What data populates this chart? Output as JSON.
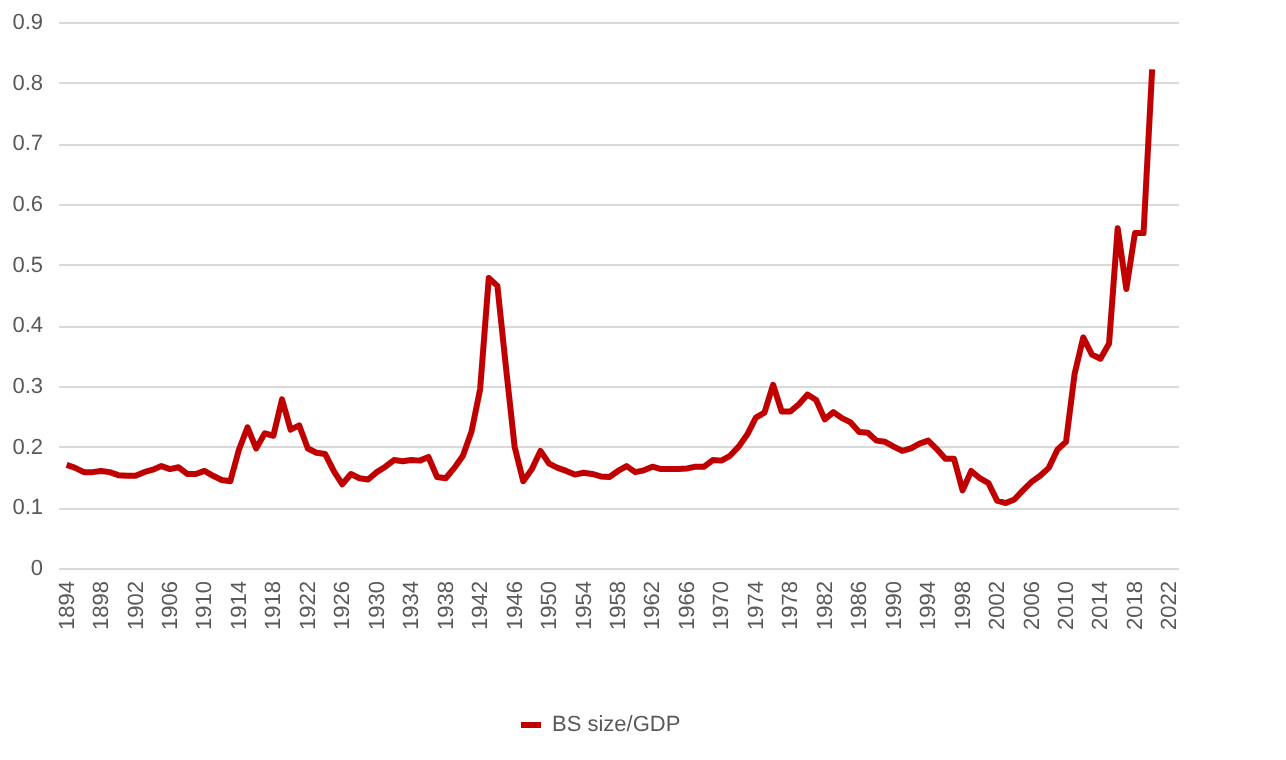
{
  "chart_data": {
    "type": "line",
    "x": [
      1894,
      1895,
      1896,
      1897,
      1898,
      1899,
      1900,
      1901,
      1902,
      1903,
      1904,
      1905,
      1906,
      1907,
      1908,
      1909,
      1910,
      1911,
      1912,
      1913,
      1914,
      1915,
      1916,
      1917,
      1918,
      1919,
      1920,
      1921,
      1922,
      1923,
      1924,
      1925,
      1926,
      1927,
      1928,
      1929,
      1930,
      1931,
      1932,
      1933,
      1934,
      1935,
      1936,
      1937,
      1938,
      1939,
      1940,
      1941,
      1942,
      1943,
      1944,
      1945,
      1946,
      1947,
      1948,
      1949,
      1950,
      1951,
      1952,
      1953,
      1954,
      1955,
      1956,
      1957,
      1958,
      1959,
      1960,
      1961,
      1962,
      1963,
      1964,
      1965,
      1966,
      1967,
      1968,
      1969,
      1970,
      1971,
      1972,
      1973,
      1974,
      1975,
      1976,
      1977,
      1978,
      1979,
      1980,
      1981,
      1982,
      1983,
      1984,
      1985,
      1986,
      1987,
      1988,
      1989,
      1990,
      1991,
      1992,
      1993,
      1994,
      1995,
      1996,
      1997,
      1998,
      1999,
      2000,
      2001,
      2002,
      2003,
      2004,
      2005,
      2006,
      2007,
      2008,
      2009,
      2010,
      2011,
      2012,
      2013,
      2014,
      2015,
      2016,
      2017,
      2018,
      2019,
      2020
    ],
    "series": [
      {
        "name": "BS size/GDP",
        "color": "#c00000",
        "values": [
          0.17,
          0.165,
          0.158,
          0.158,
          0.16,
          0.158,
          0.153,
          0.152,
          0.152,
          0.158,
          0.162,
          0.168,
          0.163,
          0.166,
          0.155,
          0.155,
          0.16,
          0.152,
          0.145,
          0.143,
          0.195,
          0.232,
          0.197,
          0.222,
          0.218,
          0.278,
          0.228,
          0.235,
          0.197,
          0.19,
          0.188,
          0.16,
          0.138,
          0.155,
          0.148,
          0.146,
          0.158,
          0.167,
          0.178,
          0.176,
          0.178,
          0.177,
          0.183,
          0.15,
          0.148,
          0.165,
          0.185,
          0.225,
          0.295,
          0.478,
          0.465,
          0.33,
          0.2,
          0.143,
          0.163,
          0.193,
          0.172,
          0.165,
          0.16,
          0.154,
          0.157,
          0.155,
          0.151,
          0.15,
          0.16,
          0.168,
          0.158,
          0.161,
          0.167,
          0.163,
          0.163,
          0.163,
          0.164,
          0.167,
          0.167,
          0.178,
          0.177,
          0.185,
          0.2,
          0.22,
          0.248,
          0.256,
          0.302,
          0.258,
          0.258,
          0.27,
          0.286,
          0.277,
          0.245,
          0.257,
          0.247,
          0.24,
          0.224,
          0.223,
          0.21,
          0.208,
          0.2,
          0.193,
          0.197,
          0.205,
          0.21,
          0.196,
          0.18,
          0.18,
          0.128,
          0.16,
          0.148,
          0.14,
          0.111,
          0.107,
          0.113,
          0.128,
          0.142,
          0.152,
          0.165,
          0.195,
          0.208,
          0.32,
          0.38,
          0.352,
          0.345,
          0.37,
          0.56,
          0.46,
          0.552,
          0.552,
          0.822
        ]
      }
    ],
    "xlim": [
      1893,
      2023
    ],
    "xticks": [
      1894,
      1898,
      1902,
      1906,
      1910,
      1914,
      1918,
      1922,
      1926,
      1930,
      1934,
      1938,
      1942,
      1946,
      1950,
      1954,
      1958,
      1962,
      1966,
      1970,
      1974,
      1978,
      1982,
      1986,
      1990,
      1994,
      1998,
      2002,
      2006,
      2010,
      2014,
      2018,
      2022
    ],
    "ylim": [
      0,
      0.9
    ],
    "yticks": [
      0,
      0.1,
      0.2,
      0.3,
      0.4,
      0.5,
      0.6,
      0.7,
      0.8,
      0.9
    ],
    "grid": "y",
    "legend": "bottom",
    "line_style": "solid",
    "marker": "none"
  }
}
